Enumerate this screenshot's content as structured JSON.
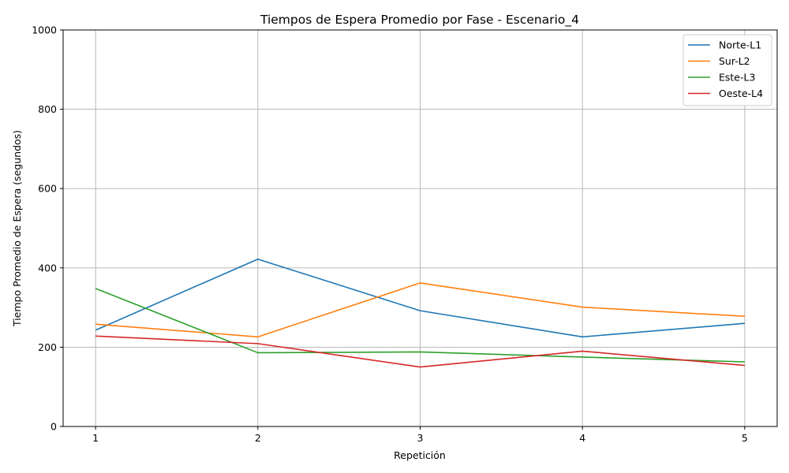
{
  "chart_data": {
    "type": "line",
    "title": "Tiempos de Espera Promedio por Fase - Escenario_4",
    "xlabel": "Repetición",
    "ylabel": "Tiempo Promedio de Espera (segundos)",
    "x": [
      1,
      2,
      3,
      4,
      5
    ],
    "xticks": [
      "1",
      "2",
      "3",
      "4",
      "5"
    ],
    "ylim": [
      0,
      1000
    ],
    "yticks": [
      "0",
      "200",
      "400",
      "600",
      "800",
      "1000"
    ],
    "grid": true,
    "legend_position": "top-right",
    "series": [
      {
        "name": "Norte-L1",
        "color": "#1f77b4",
        "values": [
          243,
          422,
          292,
          226,
          260
        ]
      },
      {
        "name": "Sur-L2",
        "color": "#ff7f0e",
        "values": [
          258,
          226,
          362,
          301,
          278
        ]
      },
      {
        "name": "Este-L3",
        "color": "#2ca02c",
        "values": [
          348,
          186,
          188,
          175,
          163
        ]
      },
      {
        "name": "Oeste-L4",
        "color": "#d62728",
        "values": [
          228,
          209,
          150,
          190,
          154
        ]
      }
    ]
  }
}
